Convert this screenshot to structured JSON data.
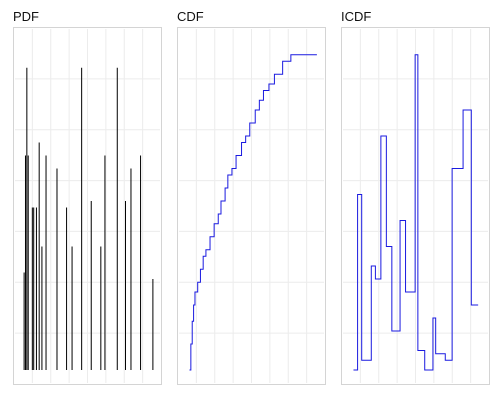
{
  "colors": {
    "pdf_line": "#000000",
    "cdf_line": "#1a1ae0",
    "icdf_line": "#1a1ae0",
    "frame": "#d4d4d4",
    "grid": "#ececec"
  },
  "chart_data": [
    {
      "id": "pdf",
      "type": "bar",
      "title": "PDF",
      "grid": true,
      "xlim": [
        0,
        100
      ],
      "ylim": [
        0,
        1
      ],
      "spikes": [
        [
          3,
          0.3
        ],
        [
          4,
          0.66
        ],
        [
          5,
          0.93
        ],
        [
          6,
          0.66
        ],
        [
          9,
          0.5
        ],
        [
          10,
          0.5
        ],
        [
          12,
          0.5
        ],
        [
          14,
          0.7
        ],
        [
          16,
          0.38
        ],
        [
          19,
          0.66
        ],
        [
          27,
          0.62
        ],
        [
          34,
          0.5
        ],
        [
          38,
          0.38
        ],
        [
          45,
          0.93
        ],
        [
          52,
          0.52
        ],
        [
          59,
          0.38
        ],
        [
          62,
          0.66
        ],
        [
          71,
          0.93
        ],
        [
          77,
          0.52
        ],
        [
          81,
          0.62
        ],
        [
          88,
          0.66
        ],
        [
          97,
          0.28
        ]
      ]
    },
    {
      "id": "cdf",
      "type": "line",
      "title": "CDF",
      "grid": true,
      "xlim": [
        0,
        100
      ],
      "ylim": [
        0,
        1
      ],
      "steps": [
        [
          4,
          0.0
        ],
        [
          5,
          0.08
        ],
        [
          6,
          0.15
        ],
        [
          7,
          0.2
        ],
        [
          8,
          0.24
        ],
        [
          10,
          0.27
        ],
        [
          12,
          0.31
        ],
        [
          14,
          0.35
        ],
        [
          16,
          0.37
        ],
        [
          19,
          0.41
        ],
        [
          22,
          0.45
        ],
        [
          25,
          0.48
        ],
        [
          27,
          0.52
        ],
        [
          30,
          0.56
        ],
        [
          32,
          0.6
        ],
        [
          35,
          0.62
        ],
        [
          38,
          0.66
        ],
        [
          42,
          0.7
        ],
        [
          45,
          0.72
        ],
        [
          48,
          0.76
        ],
        [
          52,
          0.8
        ],
        [
          55,
          0.83
        ],
        [
          58,
          0.86
        ],
        [
          62,
          0.88
        ],
        [
          66,
          0.91
        ],
        [
          72,
          0.95
        ],
        [
          78,
          0.97
        ],
        [
          97,
          0.97
        ]
      ]
    },
    {
      "id": "icdf",
      "type": "line",
      "title": "ICDF",
      "grid": true,
      "xlim": [
        0,
        100
      ],
      "ylim": [
        0,
        1
      ],
      "steps": [
        [
          4,
          0.0
        ],
        [
          7,
          0.54
        ],
        [
          10,
          0.03
        ],
        [
          17,
          0.32
        ],
        [
          20,
          0.28
        ],
        [
          24,
          0.72
        ],
        [
          28,
          0.38
        ],
        [
          32,
          0.12
        ],
        [
          38,
          0.46
        ],
        [
          42,
          0.24
        ],
        [
          49,
          0.97
        ],
        [
          51,
          0.06
        ],
        [
          56,
          0.0
        ],
        [
          62,
          0.16
        ],
        [
          64,
          0.05
        ],
        [
          71,
          0.03
        ],
        [
          76,
          0.62
        ],
        [
          82,
          0.62
        ],
        [
          84,
          0.8
        ],
        [
          90,
          0.2
        ],
        [
          95,
          0.2
        ]
      ]
    }
  ]
}
